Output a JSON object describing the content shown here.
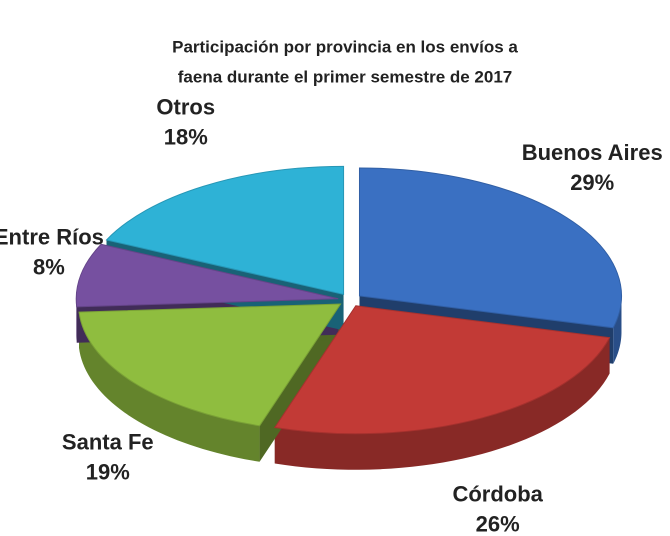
{
  "chart_data": {
    "type": "pie",
    "title": [
      "Participación por provincia en los envíos a",
      "faena  durante el primer semestre de 2017"
    ],
    "categories": [
      "Buenos Aires",
      "Córdoba",
      "Santa Fe",
      "Entre Ríos",
      "Otros"
    ],
    "values": [
      29,
      26,
      19,
      8,
      18
    ],
    "value_labels": [
      "29%",
      "26%",
      "19%",
      "8%",
      "18%"
    ],
    "colors": [
      "#3a70c2",
      "#c23a36",
      "#8fbd3f",
      "#7650a0",
      "#2eb2d6"
    ]
  }
}
